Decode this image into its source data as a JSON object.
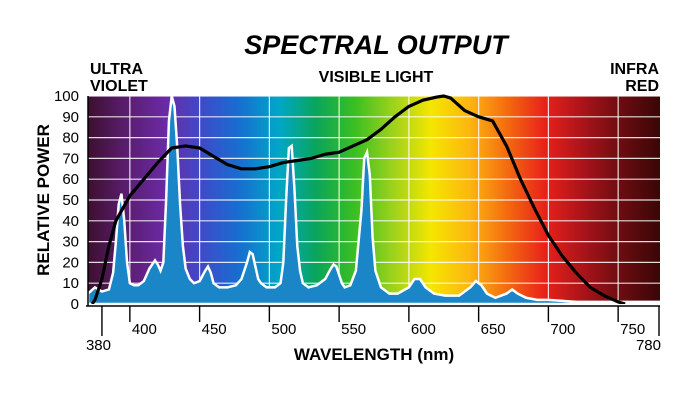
{
  "chart_data": {
    "type": "area",
    "title": "SPECTRAL OUTPUT",
    "xlabel": "WAVELENGTH (nm)",
    "ylabel": "RELATIVE POWER",
    "xlim": [
      370,
      780
    ],
    "ylim": [
      0,
      100
    ],
    "x_ticks": [
      400,
      450,
      500,
      550,
      600,
      650,
      700,
      750
    ],
    "x_extra_ticks": [
      380,
      780
    ],
    "y_ticks": [
      0,
      10,
      20,
      30,
      40,
      50,
      60,
      70,
      80,
      90,
      100
    ],
    "grid": true,
    "region_labels": {
      "ultraviolet": [
        "ULTRA",
        "VIOLET"
      ],
      "visible": "VISIBLE LIGHT",
      "infrared": [
        "INFRA",
        "RED"
      ]
    },
    "colors": {
      "line_spectrum": "#000000",
      "peaks_fill": "#1a86c8",
      "background_gradient": [
        "#3d1030",
        "#5a1d6e",
        "#6a2aa3",
        "#3d4bc9",
        "#1670d0",
        "#00a6c8",
        "#0aa55a",
        "#3bbf22",
        "#9dd21c",
        "#f5e600",
        "#fcb610",
        "#f46a10",
        "#e8201a",
        "#a8141a",
        "#6a0c10",
        "#3a0606"
      ]
    },
    "series": [
      {
        "name": "",
        "kind": "area",
        "x": [
          370,
          375,
          380,
          385,
          388,
          390,
          392,
          394,
          396,
          398,
          400,
          403,
          406,
          410,
          414,
          418,
          420,
          422,
          424,
          426,
          428,
          430,
          432,
          434,
          436,
          438,
          440,
          443,
          446,
          450,
          454,
          456,
          458,
          460,
          464,
          470,
          476,
          480,
          484,
          486,
          488,
          490,
          492,
          494,
          498,
          504,
          508,
          510,
          512,
          514,
          516,
          518,
          520,
          522,
          524,
          528,
          534,
          540,
          544,
          546,
          548,
          550,
          552,
          554,
          558,
          562,
          566,
          568,
          570,
          572,
          574,
          576,
          580,
          586,
          592,
          600,
          604,
          608,
          612,
          618,
          626,
          636,
          644,
          648,
          652,
          656,
          662,
          670,
          674,
          678,
          684,
          692,
          700,
          720,
          740,
          760,
          780
        ],
        "values": [
          5,
          8,
          6,
          7,
          15,
          30,
          48,
          53,
          40,
          20,
          10,
          9,
          9,
          11,
          17,
          21,
          19,
          16,
          20,
          50,
          88,
          100,
          95,
          75,
          48,
          28,
          17,
          12,
          10,
          11,
          16,
          18,
          15,
          10,
          8,
          8,
          9,
          12,
          20,
          25,
          24,
          18,
          12,
          10,
          8,
          8,
          10,
          20,
          50,
          75,
          76,
          55,
          28,
          16,
          10,
          8,
          9,
          12,
          17,
          19,
          18,
          14,
          10,
          8,
          9,
          16,
          45,
          70,
          73,
          62,
          32,
          16,
          8,
          5,
          5,
          8,
          12,
          12,
          8,
          5,
          4,
          4,
          8,
          11,
          9,
          5,
          3,
          5,
          7,
          5,
          3,
          2,
          2,
          1,
          1,
          1,
          1
        ]
      },
      {
        "name": "",
        "kind": "line",
        "x": [
          373,
          375,
          380,
          385,
          390,
          400,
          410,
          420,
          430,
          440,
          450,
          460,
          470,
          480,
          490,
          500,
          510,
          520,
          530,
          540,
          550,
          560,
          570,
          580,
          590,
          600,
          610,
          620,
          625,
          630,
          640,
          650,
          660,
          670,
          680,
          690,
          700,
          710,
          720,
          730,
          740,
          750,
          755
        ],
        "values": [
          0,
          2,
          12,
          28,
          40,
          52,
          60,
          68,
          75,
          76,
          75,
          71,
          67,
          65,
          65,
          66,
          68,
          69,
          70,
          72,
          73,
          76,
          79,
          84,
          90,
          95,
          98,
          99.5,
          100,
          99,
          93,
          90,
          88,
          76,
          60,
          46,
          33,
          23,
          15,
          8,
          4,
          1,
          0
        ]
      }
    ]
  }
}
